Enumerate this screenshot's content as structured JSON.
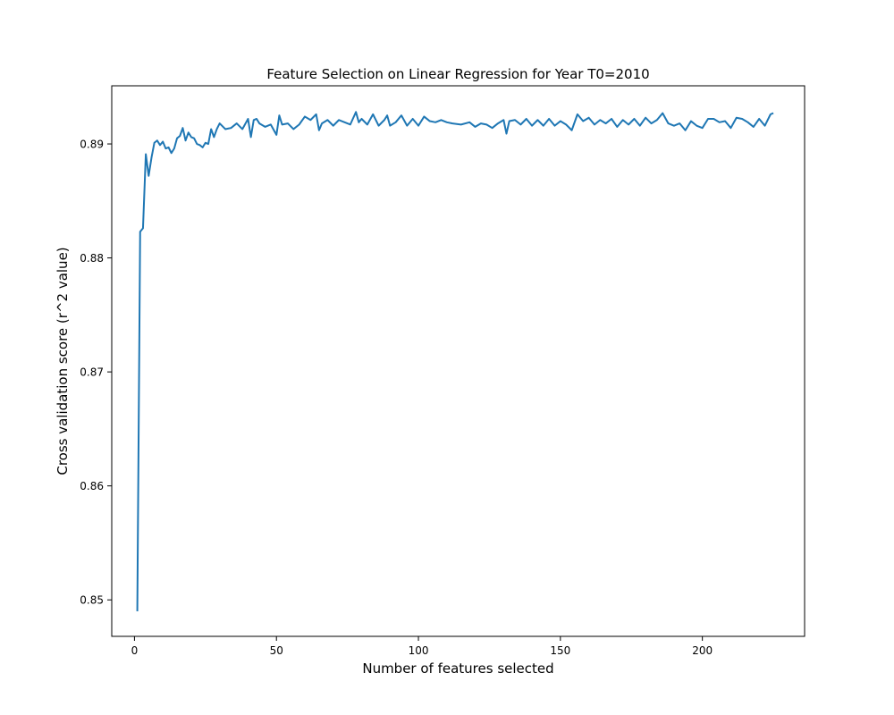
{
  "chart_data": {
    "type": "line",
    "title": "Feature Selection on Linear Regression for Year T0=2010",
    "xlabel": "Number of features selected",
    "ylabel": "Cross validation score (r^2 value)",
    "xlim": [
      -8,
      236
    ],
    "ylim": [
      0.8468,
      0.8951
    ],
    "xticks": [
      0,
      50,
      100,
      150,
      200
    ],
    "yticks": [
      0.85,
      0.86,
      0.87,
      0.88,
      0.89
    ],
    "ytick_labels": [
      "0.85",
      "0.86",
      "0.87",
      "0.88",
      "0.89"
    ],
    "grid": false,
    "legend": "none",
    "line_color": "#1f77b4",
    "series": [
      {
        "x": [
          1,
          2,
          3,
          4,
          5,
          6,
          7,
          8,
          9,
          10,
          11,
          12,
          13,
          14,
          15,
          16,
          17,
          18,
          19,
          20,
          21,
          22,
          23,
          24,
          25,
          26,
          27,
          28,
          29,
          30,
          32,
          34,
          36,
          38,
          40,
          41,
          42,
          43,
          44,
          46,
          48,
          50,
          51,
          52,
          54,
          56,
          58,
          60,
          62,
          64,
          65,
          66,
          68,
          70,
          72,
          74,
          76,
          78,
          79,
          80,
          82,
          84,
          86,
          88,
          89,
          90,
          92,
          94,
          96,
          98,
          100,
          102,
          104,
          106,
          108,
          110,
          112,
          115,
          118,
          120,
          122,
          124,
          126,
          128,
          130,
          131,
          132,
          134,
          136,
          138,
          140,
          142,
          144,
          146,
          148,
          150,
          152,
          154,
          156,
          158,
          160,
          162,
          164,
          166,
          168,
          170,
          172,
          174,
          176,
          178,
          180,
          182,
          184,
          186,
          188,
          190,
          192,
          194,
          196,
          198,
          200,
          202,
          204,
          206,
          208,
          210,
          212,
          214,
          216,
          218,
          220,
          222,
          224,
          225
        ],
        "y": [
          0.849,
          0.8823,
          0.8826,
          0.8891,
          0.8872,
          0.8888,
          0.8901,
          0.8903,
          0.8899,
          0.8902,
          0.8896,
          0.8897,
          0.8892,
          0.8896,
          0.8905,
          0.8907,
          0.8914,
          0.8903,
          0.891,
          0.8906,
          0.8905,
          0.89,
          0.8899,
          0.8897,
          0.8901,
          0.89,
          0.8913,
          0.8906,
          0.8913,
          0.8918,
          0.8913,
          0.8914,
          0.8918,
          0.8913,
          0.8922,
          0.8906,
          0.8921,
          0.8922,
          0.8918,
          0.8915,
          0.8917,
          0.8908,
          0.8925,
          0.8917,
          0.8918,
          0.8913,
          0.8917,
          0.8924,
          0.8921,
          0.8926,
          0.8912,
          0.8918,
          0.8921,
          0.8916,
          0.8921,
          0.8919,
          0.8917,
          0.8928,
          0.8919,
          0.8922,
          0.8917,
          0.8926,
          0.8916,
          0.8921,
          0.8925,
          0.8916,
          0.8919,
          0.8925,
          0.8916,
          0.8922,
          0.8916,
          0.8924,
          0.892,
          0.8919,
          0.8921,
          0.8919,
          0.8918,
          0.8917,
          0.8919,
          0.8915,
          0.8918,
          0.8917,
          0.8914,
          0.8918,
          0.8921,
          0.8909,
          0.892,
          0.8921,
          0.8917,
          0.8922,
          0.8916,
          0.8921,
          0.8916,
          0.8922,
          0.8916,
          0.892,
          0.8917,
          0.8912,
          0.8926,
          0.892,
          0.8923,
          0.8917,
          0.8921,
          0.8918,
          0.8922,
          0.8915,
          0.8921,
          0.8917,
          0.8922,
          0.8916,
          0.8923,
          0.8918,
          0.8921,
          0.8927,
          0.8918,
          0.8916,
          0.8918,
          0.8912,
          0.892,
          0.8916,
          0.8914,
          0.8922,
          0.8922,
          0.8919,
          0.892,
          0.8914,
          0.8923,
          0.8922,
          0.8919,
          0.8915,
          0.8922,
          0.8916,
          0.8926,
          0.8927
        ]
      }
    ]
  }
}
